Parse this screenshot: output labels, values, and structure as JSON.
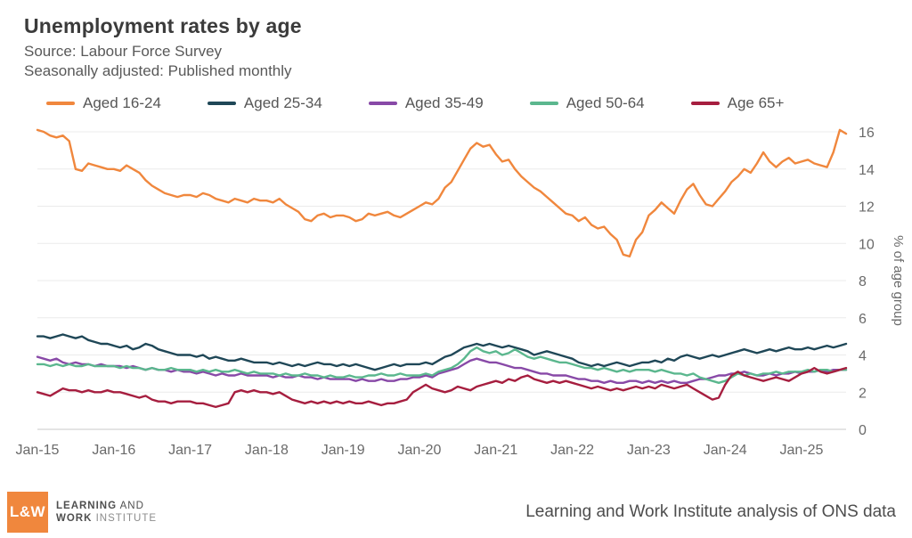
{
  "header": {
    "title": "Unemployment rates by age",
    "subtitle1": "Source: Labour Force Survey",
    "subtitle2": "Seasonally adjusted: Published monthly"
  },
  "chart_data": {
    "type": "line",
    "x_unit": "month",
    "x_start": "Jan-15",
    "x_end": "Aug-25",
    "n_points": 128,
    "x_tick_labels": [
      "Jan-15",
      "Jan-16",
      "Jan-17",
      "Jan-18",
      "Jan-19",
      "Jan-20",
      "Jan-21",
      "Jan-22",
      "Jan-23",
      "Jan-24",
      "Jan-25"
    ],
    "x_tick_interval_months": 12,
    "ylabel": "% of age group",
    "ylim": [
      0,
      16
    ],
    "ytick_step": 2,
    "grid": "horizontal",
    "legend_position": "top",
    "series": [
      {
        "name": "Aged 16-24",
        "color": "#F0873D",
        "values": [
          16.1,
          16.0,
          15.8,
          15.7,
          15.8,
          15.5,
          14.0,
          13.9,
          14.3,
          14.2,
          14.1,
          14.0,
          14.0,
          13.9,
          14.2,
          14.0,
          13.8,
          13.4,
          13.1,
          12.9,
          12.7,
          12.6,
          12.5,
          12.6,
          12.6,
          12.5,
          12.7,
          12.6,
          12.4,
          12.3,
          12.2,
          12.4,
          12.3,
          12.2,
          12.4,
          12.3,
          12.3,
          12.2,
          12.4,
          12.1,
          11.9,
          11.7,
          11.3,
          11.2,
          11.5,
          11.6,
          11.4,
          11.5,
          11.5,
          11.4,
          11.2,
          11.3,
          11.6,
          11.5,
          11.6,
          11.7,
          11.5,
          11.4,
          11.6,
          11.8,
          12.0,
          12.2,
          12.1,
          12.4,
          13.0,
          13.3,
          13.9,
          14.5,
          15.1,
          15.4,
          15.2,
          15.3,
          14.8,
          14.4,
          14.5,
          14.0,
          13.6,
          13.3,
          13.0,
          12.8,
          12.5,
          12.2,
          11.9,
          11.6,
          11.5,
          11.2,
          11.4,
          11.0,
          10.8,
          10.9,
          10.5,
          10.2,
          9.4,
          9.3,
          10.2,
          10.6,
          11.5,
          11.8,
          12.2,
          11.9,
          11.6,
          12.3,
          12.9,
          13.2,
          12.6,
          12.1,
          12.0,
          12.4,
          12.8,
          13.3,
          13.6,
          14.0,
          13.8,
          14.3,
          14.9,
          14.4,
          14.1,
          14.4,
          14.6,
          14.3,
          14.4,
          14.5,
          14.3,
          14.2,
          14.1,
          14.9,
          16.1,
          15.9
        ]
      },
      {
        "name": "Aged 25-34",
        "color": "#1F4757",
        "values": [
          5.0,
          5.0,
          4.9,
          5.0,
          5.1,
          5.0,
          4.9,
          5.0,
          4.8,
          4.7,
          4.6,
          4.6,
          4.5,
          4.4,
          4.5,
          4.3,
          4.4,
          4.6,
          4.5,
          4.3,
          4.2,
          4.1,
          4.0,
          4.0,
          4.0,
          3.9,
          4.0,
          3.8,
          3.9,
          3.8,
          3.7,
          3.7,
          3.8,
          3.7,
          3.6,
          3.6,
          3.6,
          3.5,
          3.6,
          3.5,
          3.4,
          3.5,
          3.4,
          3.5,
          3.6,
          3.5,
          3.5,
          3.4,
          3.5,
          3.4,
          3.5,
          3.4,
          3.3,
          3.2,
          3.3,
          3.4,
          3.5,
          3.4,
          3.5,
          3.5,
          3.5,
          3.6,
          3.5,
          3.7,
          3.9,
          4.0,
          4.2,
          4.4,
          4.5,
          4.6,
          4.5,
          4.6,
          4.5,
          4.4,
          4.5,
          4.4,
          4.3,
          4.2,
          4.0,
          4.1,
          4.2,
          4.1,
          4.0,
          3.9,
          3.8,
          3.6,
          3.5,
          3.4,
          3.5,
          3.4,
          3.5,
          3.6,
          3.5,
          3.4,
          3.5,
          3.6,
          3.6,
          3.7,
          3.6,
          3.8,
          3.7,
          3.9,
          4.0,
          3.9,
          3.8,
          3.9,
          4.0,
          3.9,
          4.0,
          4.1,
          4.2,
          4.3,
          4.2,
          4.1,
          4.2,
          4.3,
          4.2,
          4.3,
          4.4,
          4.3,
          4.3,
          4.4,
          4.3,
          4.4,
          4.5,
          4.4,
          4.5,
          4.6
        ]
      },
      {
        "name": "Aged 35-49",
        "color": "#8849A7",
        "values": [
          3.9,
          3.8,
          3.7,
          3.8,
          3.6,
          3.5,
          3.6,
          3.5,
          3.5,
          3.4,
          3.5,
          3.4,
          3.4,
          3.4,
          3.3,
          3.4,
          3.3,
          3.2,
          3.3,
          3.2,
          3.2,
          3.1,
          3.2,
          3.1,
          3.1,
          3.0,
          3.1,
          3.0,
          2.9,
          3.0,
          2.9,
          2.9,
          3.0,
          2.9,
          2.9,
          2.9,
          2.9,
          2.8,
          2.9,
          2.8,
          2.8,
          2.9,
          2.8,
          2.8,
          2.7,
          2.8,
          2.7,
          2.7,
          2.7,
          2.7,
          2.6,
          2.7,
          2.6,
          2.6,
          2.7,
          2.6,
          2.6,
          2.7,
          2.7,
          2.8,
          2.8,
          2.9,
          2.8,
          3.0,
          3.1,
          3.2,
          3.3,
          3.5,
          3.7,
          3.8,
          3.7,
          3.6,
          3.6,
          3.5,
          3.4,
          3.3,
          3.3,
          3.2,
          3.1,
          3.0,
          3.0,
          2.9,
          2.9,
          2.9,
          2.8,
          2.7,
          2.7,
          2.6,
          2.6,
          2.5,
          2.6,
          2.5,
          2.5,
          2.6,
          2.6,
          2.5,
          2.6,
          2.5,
          2.6,
          2.5,
          2.6,
          2.5,
          2.5,
          2.6,
          2.7,
          2.7,
          2.8,
          2.9,
          2.9,
          3.0,
          3.0,
          3.1,
          3.0,
          2.9,
          2.9,
          3.0,
          2.9,
          3.0,
          3.0,
          3.1,
          3.0,
          3.1,
          3.1,
          3.2,
          3.1,
          3.2,
          3.2,
          3.2
        ]
      },
      {
        "name": "Aged 50-64",
        "color": "#5BB78E",
        "values": [
          3.5,
          3.5,
          3.4,
          3.5,
          3.4,
          3.5,
          3.4,
          3.4,
          3.5,
          3.4,
          3.4,
          3.4,
          3.4,
          3.3,
          3.4,
          3.3,
          3.3,
          3.2,
          3.3,
          3.2,
          3.2,
          3.3,
          3.2,
          3.2,
          3.2,
          3.1,
          3.2,
          3.1,
          3.2,
          3.1,
          3.1,
          3.2,
          3.1,
          3.0,
          3.1,
          3.0,
          3.0,
          3.0,
          2.9,
          3.0,
          2.9,
          2.9,
          3.0,
          2.9,
          2.9,
          2.8,
          2.9,
          2.8,
          2.8,
          2.9,
          2.8,
          2.8,
          2.9,
          2.9,
          3.0,
          2.9,
          2.9,
          3.0,
          2.9,
          2.9,
          2.9,
          3.0,
          2.9,
          3.1,
          3.2,
          3.3,
          3.5,
          3.8,
          4.2,
          4.4,
          4.2,
          4.1,
          4.2,
          4.0,
          4.1,
          4.3,
          4.1,
          3.9,
          3.8,
          3.9,
          3.8,
          3.7,
          3.6,
          3.6,
          3.5,
          3.4,
          3.3,
          3.3,
          3.2,
          3.3,
          3.2,
          3.1,
          3.2,
          3.1,
          3.2,
          3.2,
          3.2,
          3.1,
          3.2,
          3.1,
          3.0,
          3.0,
          2.9,
          3.0,
          2.8,
          2.7,
          2.6,
          2.5,
          2.6,
          2.8,
          3.0,
          2.9,
          3.0,
          2.9,
          3.0,
          3.0,
          3.1,
          3.0,
          3.1,
          3.1,
          3.1,
          3.2,
          3.1,
          3.2,
          3.2,
          3.1,
          3.2,
          3.2
        ]
      },
      {
        "name": "Age 65+",
        "color": "#A61E3F",
        "values": [
          2.0,
          1.9,
          1.8,
          2.0,
          2.2,
          2.1,
          2.1,
          2.0,
          2.1,
          2.0,
          2.0,
          2.1,
          2.0,
          2.0,
          1.9,
          1.8,
          1.7,
          1.8,
          1.6,
          1.5,
          1.5,
          1.4,
          1.5,
          1.5,
          1.5,
          1.4,
          1.4,
          1.3,
          1.2,
          1.3,
          1.4,
          2.0,
          2.1,
          2.0,
          2.1,
          2.0,
          2.0,
          1.9,
          2.0,
          1.8,
          1.6,
          1.5,
          1.4,
          1.5,
          1.4,
          1.5,
          1.4,
          1.5,
          1.4,
          1.5,
          1.4,
          1.4,
          1.5,
          1.4,
          1.3,
          1.4,
          1.4,
          1.5,
          1.6,
          2.0,
          2.2,
          2.4,
          2.2,
          2.1,
          2.0,
          2.1,
          2.3,
          2.2,
          2.1,
          2.3,
          2.4,
          2.5,
          2.6,
          2.5,
          2.7,
          2.6,
          2.8,
          2.9,
          2.7,
          2.6,
          2.5,
          2.6,
          2.5,
          2.6,
          2.5,
          2.4,
          2.3,
          2.2,
          2.3,
          2.2,
          2.1,
          2.2,
          2.1,
          2.2,
          2.3,
          2.2,
          2.3,
          2.2,
          2.4,
          2.3,
          2.2,
          2.3,
          2.4,
          2.2,
          2.0,
          1.8,
          1.6,
          1.7,
          2.4,
          2.9,
          3.1,
          2.9,
          2.8,
          2.7,
          2.6,
          2.7,
          2.8,
          2.7,
          2.6,
          2.8,
          3.0,
          3.1,
          3.3,
          3.1,
          3.0,
          3.1,
          3.2,
          3.3
        ]
      }
    ]
  },
  "footer": {
    "logo_mark": "L&W",
    "logo_line1_bold": "LEARNING",
    "logo_line1_rest": " AND",
    "logo_line2_bold": "WORK",
    "logo_line2_rest": " INSTITUTE",
    "attribution": "Learning and Work Institute analysis of ONS data"
  },
  "colors": {
    "logo_background": "#F0873D",
    "title_text": "#3b3b3b",
    "subtitle_text": "#595959",
    "axis_text": "#6a6a6a",
    "gridline": "#ebebeb",
    "axis_line": "#c9c9c9"
  }
}
